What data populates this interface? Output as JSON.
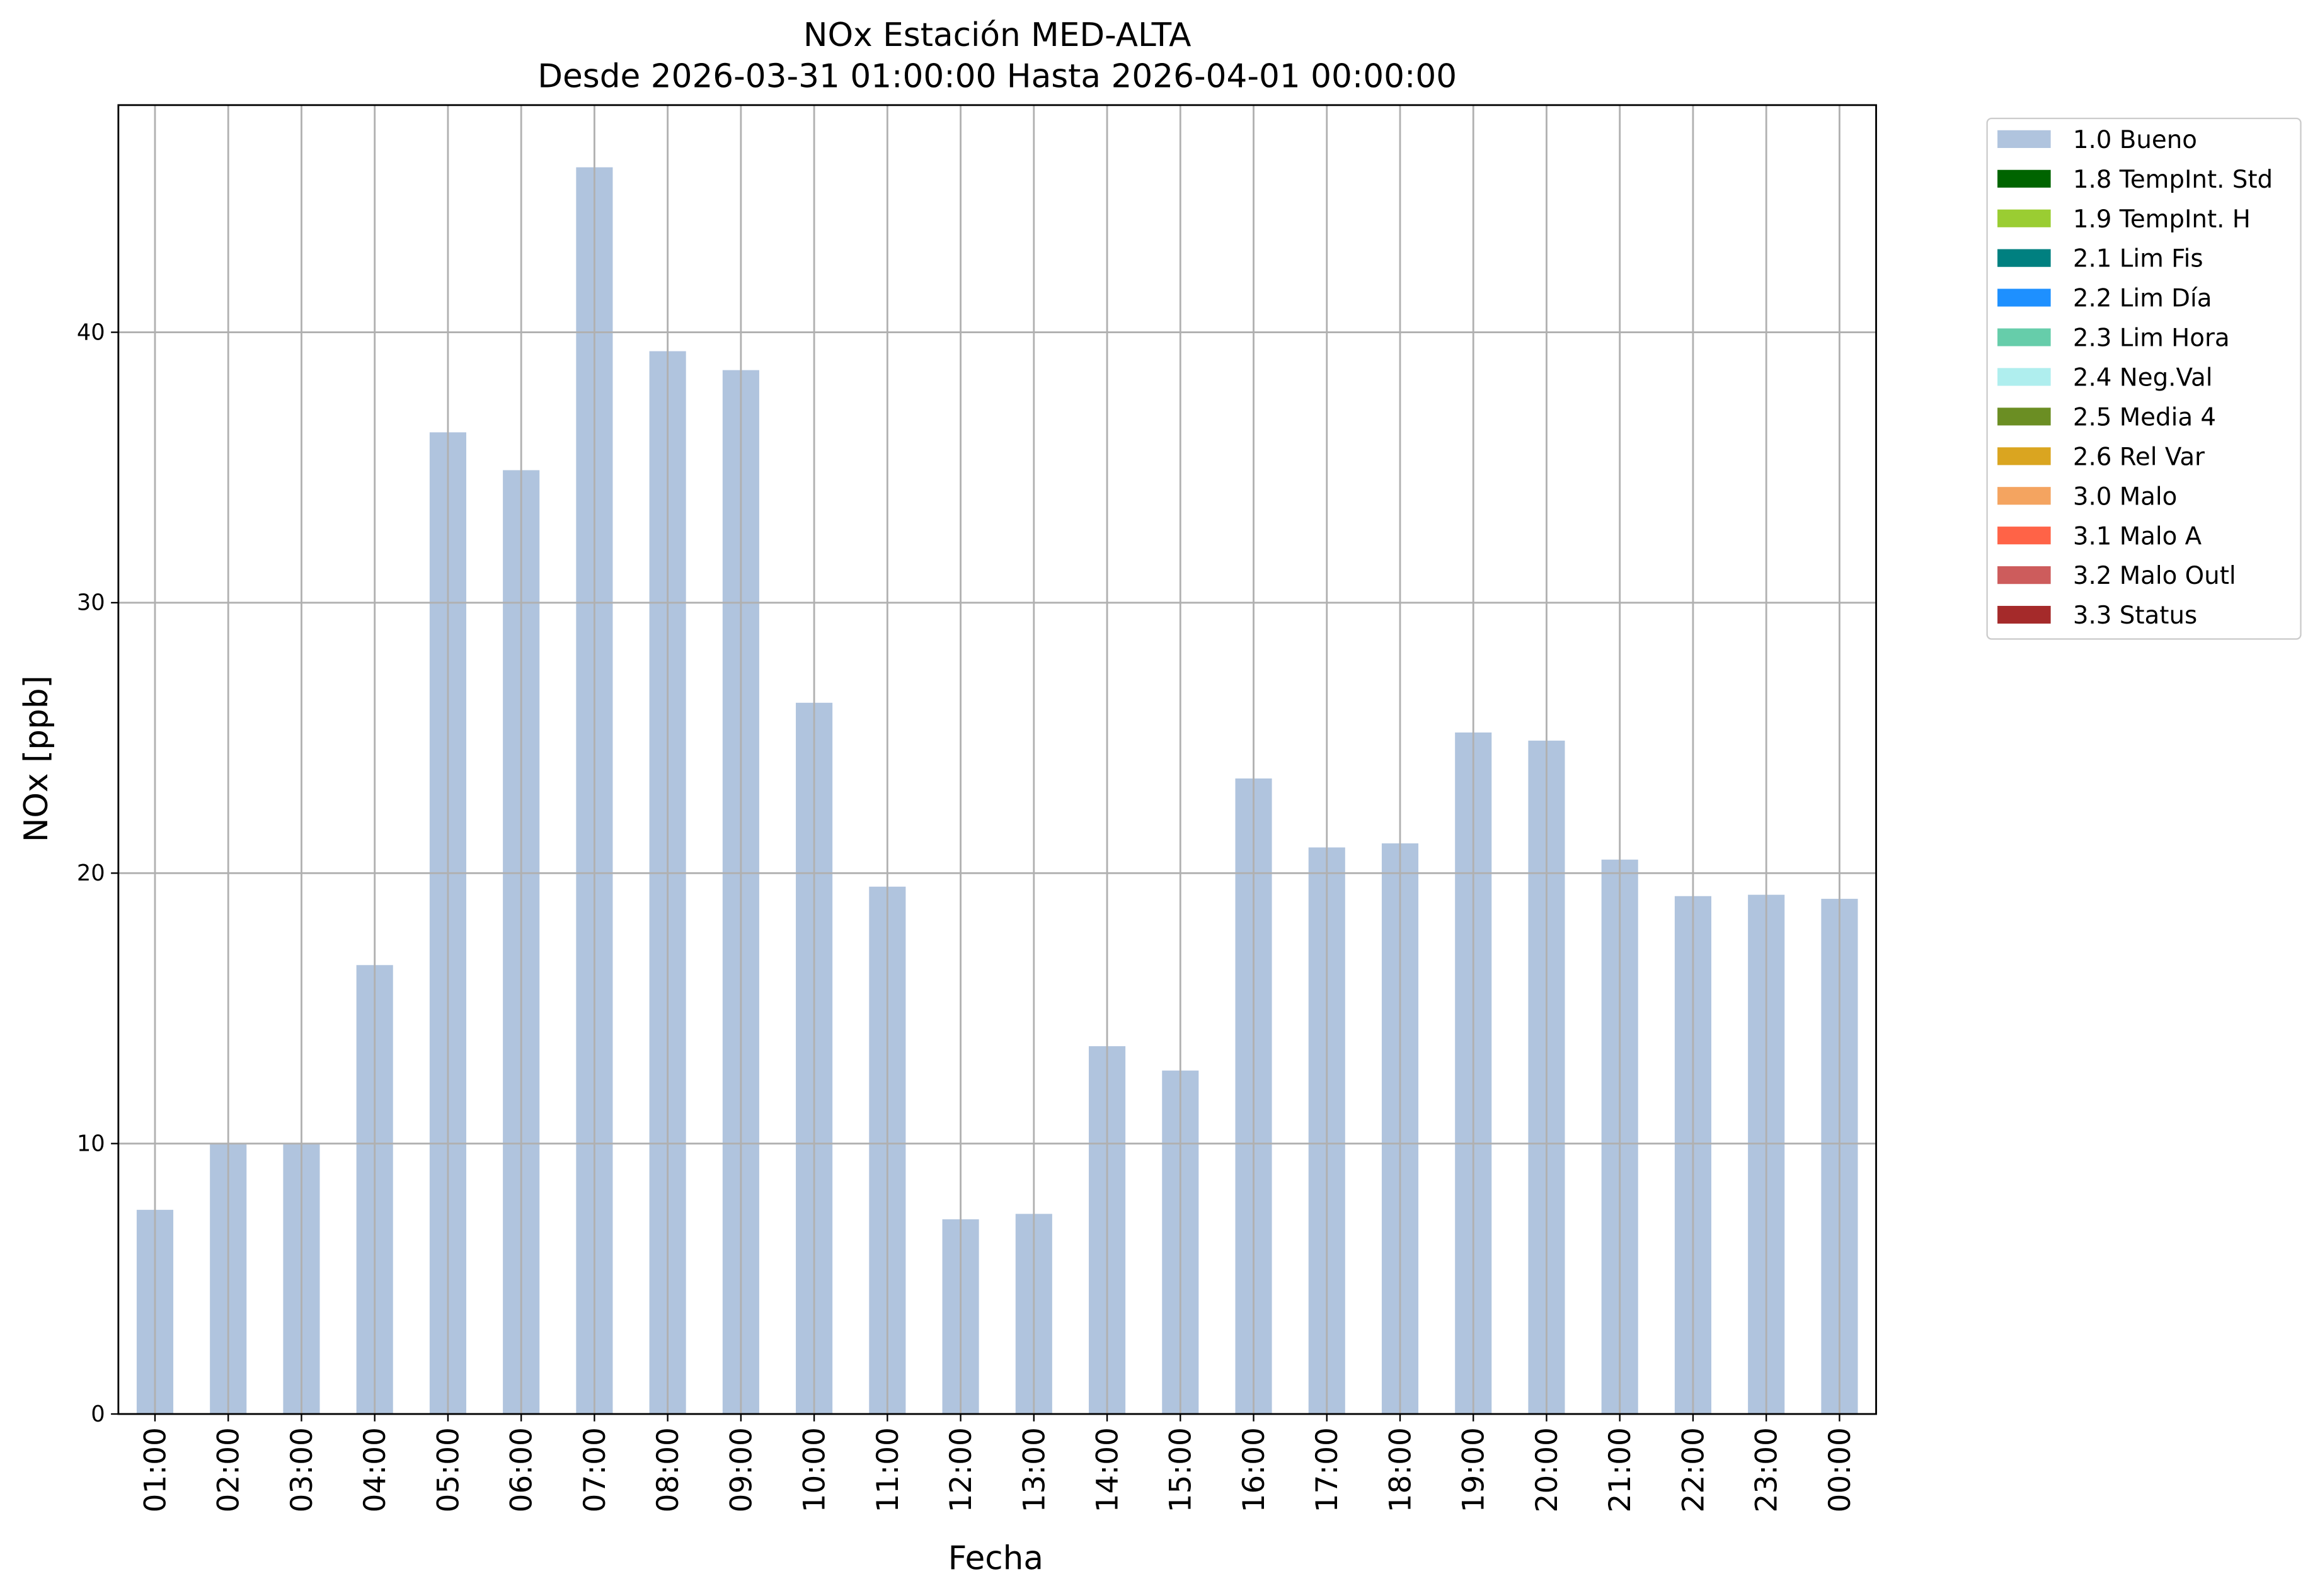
{
  "chart_data": {
    "type": "bar",
    "stacked": true,
    "title": "NOx Estación MED-ALTA",
    "subtitle": "Desde 2026-03-31 01:00:00 Hasta 2026-04-01 00:00:00",
    "x_label": "Fecha",
    "y_label": "NOx [ppb]",
    "categories": [
      "01:00",
      "02:00",
      "03:00",
      "04:00",
      "05:00",
      "06:00",
      "07:00",
      "08:00",
      "09:00",
      "10:00",
      "11:00",
      "12:00",
      "13:00",
      "14:00",
      "15:00",
      "16:00",
      "17:00",
      "18:00",
      "19:00",
      "20:00",
      "21:00",
      "22:00",
      "23:00",
      "00:00"
    ],
    "series": [
      {
        "name": "1.0 Bueno",
        "color": "#b0c4de",
        "values": [
          7.55,
          10.0,
          10.0,
          16.6,
          36.3,
          34.9,
          46.1,
          39.3,
          38.6,
          26.3,
          19.5,
          7.2,
          7.4,
          13.6,
          12.7,
          23.5,
          20.95,
          21.1,
          25.2,
          24.9,
          20.5,
          19.15,
          19.2,
          19.05
        ]
      },
      {
        "name": "1.8 TempInt. Std",
        "color": "#006400",
        "values": [
          0,
          0,
          0,
          0,
          0,
          0,
          0,
          0,
          0,
          0,
          0,
          0,
          0,
          0,
          0,
          0,
          0,
          0,
          0,
          0,
          0,
          0,
          0,
          0
        ]
      },
      {
        "name": "1.9 TempInt. H",
        "color": "#9acd32",
        "values": [
          0,
          0,
          0,
          0,
          0,
          0,
          0,
          0,
          0,
          0,
          0,
          0,
          0,
          0,
          0,
          0,
          0,
          0,
          0,
          0,
          0,
          0,
          0,
          0
        ]
      },
      {
        "name": "2.1 Lim Fis",
        "color": "#008080",
        "values": [
          0,
          0,
          0,
          0,
          0,
          0,
          0,
          0,
          0,
          0,
          0,
          0,
          0,
          0,
          0,
          0,
          0,
          0,
          0,
          0,
          0,
          0,
          0,
          0
        ]
      },
      {
        "name": "2.2 Lim Día",
        "color": "#1e90ff",
        "values": [
          0,
          0,
          0,
          0,
          0,
          0,
          0,
          0,
          0,
          0,
          0,
          0,
          0,
          0,
          0,
          0,
          0,
          0,
          0,
          0,
          0,
          0,
          0,
          0
        ]
      },
      {
        "name": "2.3 Lim Hora",
        "color": "#66cdaa",
        "values": [
          0,
          0,
          0,
          0,
          0,
          0,
          0,
          0,
          0,
          0,
          0,
          0,
          0,
          0,
          0,
          0,
          0,
          0,
          0,
          0,
          0,
          0,
          0,
          0
        ]
      },
      {
        "name": "2.4 Neg.Val",
        "color": "#afeeee",
        "values": [
          0,
          0,
          0,
          0,
          0,
          0,
          0,
          0,
          0,
          0,
          0,
          0,
          0,
          0,
          0,
          0,
          0,
          0,
          0,
          0,
          0,
          0,
          0,
          0
        ]
      },
      {
        "name": "2.5 Media 4",
        "color": "#6b8e23",
        "values": [
          0,
          0,
          0,
          0,
          0,
          0,
          0,
          0,
          0,
          0,
          0,
          0,
          0,
          0,
          0,
          0,
          0,
          0,
          0,
          0,
          0,
          0,
          0,
          0
        ]
      },
      {
        "name": "2.6 Rel Var",
        "color": "#daa520",
        "values": [
          0,
          0,
          0,
          0,
          0,
          0,
          0,
          0,
          0,
          0,
          0,
          0,
          0,
          0,
          0,
          0,
          0,
          0,
          0,
          0,
          0,
          0,
          0,
          0
        ]
      },
      {
        "name": "3.0 Malo",
        "color": "#f4a460",
        "values": [
          0,
          0,
          0,
          0,
          0,
          0,
          0,
          0,
          0,
          0,
          0,
          0,
          0,
          0,
          0,
          0,
          0,
          0,
          0,
          0,
          0,
          0,
          0,
          0
        ]
      },
      {
        "name": "3.1 Malo A",
        "color": "#ff6347",
        "values": [
          0,
          0,
          0,
          0,
          0,
          0,
          0,
          0,
          0,
          0,
          0,
          0,
          0,
          0,
          0,
          0,
          0,
          0,
          0,
          0,
          0,
          0,
          0,
          0
        ]
      },
      {
        "name": "3.2 Malo Outl",
        "color": "#cd5c5c",
        "values": [
          0,
          0,
          0,
          0,
          0,
          0,
          0,
          0,
          0,
          0,
          0,
          0,
          0,
          0,
          0,
          0,
          0,
          0,
          0,
          0,
          0,
          0,
          0,
          0
        ]
      },
      {
        "name": "3.3 Status",
        "color": "#a52a2a",
        "values": [
          0,
          0,
          0,
          0,
          0,
          0,
          0,
          0,
          0,
          0,
          0,
          0,
          0,
          0,
          0,
          0,
          0,
          0,
          0,
          0,
          0,
          0,
          0,
          0
        ]
      }
    ],
    "ylim": [
      0,
      48.4
    ],
    "yticks": [
      0,
      10,
      20,
      30,
      40
    ],
    "grid": true,
    "legend": "outside right"
  }
}
